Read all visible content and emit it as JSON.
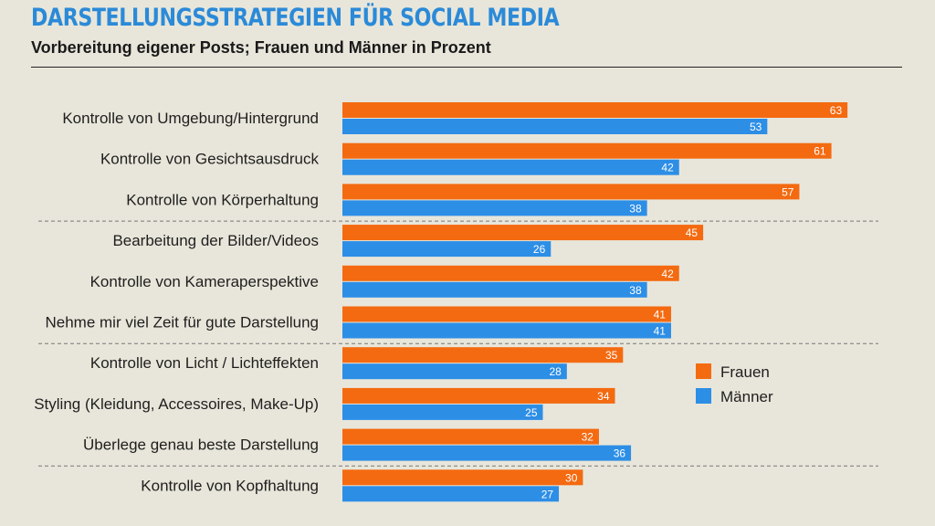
{
  "header": {
    "title": "DARSTELLUNGSSTRATEGIEN FÜR SOCIAL MEDIA",
    "subtitle": "Vorbereitung eigener Posts; Frauen und Männer in Prozent"
  },
  "colors": {
    "frauen": "#f46a10",
    "maenner": "#2d8ee6",
    "separator": "#777777"
  },
  "chart_data": {
    "type": "bar",
    "orientation": "horizontal",
    "categories": [
      "Kontrolle von Umgebung/Hintergrund",
      "Kontrolle von Gesichtsausdruck",
      "Kontrolle von Körperhaltung",
      "Bearbeitung der Bilder/Videos",
      "Kontrolle von Kameraperspektive",
      "Nehme mir viel Zeit für gute Darstellung",
      "Kontrolle von Licht / Lichteffekten",
      "Styling (Kleidung, Accessoires, Make-Up)",
      "Überlege genau beste Darstellung",
      "Kontrolle von Kopfhaltung"
    ],
    "series": [
      {
        "name": "Frauen",
        "values": [
          63,
          61,
          57,
          45,
          42,
          41,
          35,
          34,
          32,
          30
        ]
      },
      {
        "name": "Männer",
        "values": [
          53,
          42,
          38,
          26,
          38,
          41,
          28,
          25,
          36,
          27
        ]
      }
    ],
    "separators_after": [
      2,
      5,
      8
    ],
    "xlim": [
      0,
      70
    ],
    "legend_position": "right",
    "title": "DARSTELLUNGSSTRATEGIEN FÜR SOCIAL MEDIA",
    "subtitle": "Vorbereitung eigener Posts; Frauen und Männer in Prozent",
    "xlabel": "",
    "ylabel": ""
  }
}
